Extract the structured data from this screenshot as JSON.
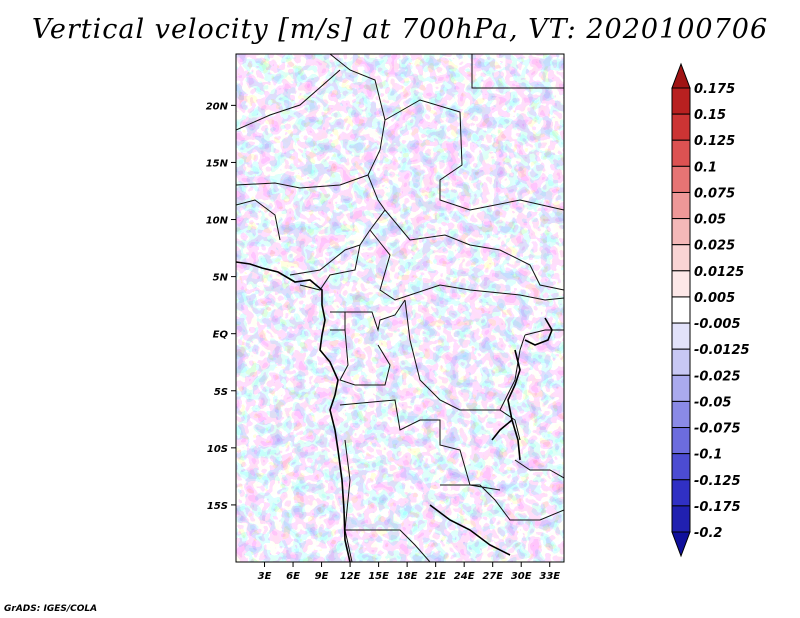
{
  "title": "Vertical velocity [m/s] at 700hPa, VT: 2020100706",
  "credit": "GrADS: IGES/COLA",
  "map": {
    "lat_labels": [
      "20N",
      "15N",
      "10N",
      "5N",
      "EQ",
      "5S",
      "10S",
      "15S"
    ],
    "lon_labels": [
      "3E",
      "6E",
      "9E",
      "12E",
      "15E",
      "18E",
      "21E",
      "24E",
      "27E",
      "30E",
      "33E"
    ],
    "lat_range": [
      -20,
      24.5
    ],
    "lon_range": [
      0,
      34.5
    ]
  },
  "colorbar": {
    "levels": [
      "0.175",
      "0.15",
      "0.125",
      "0.1",
      "0.075",
      "0.05",
      "0.025",
      "0.0125",
      "0.005",
      "-0.005",
      "-0.0125",
      "-0.025",
      "-0.05",
      "-0.075",
      "-0.1",
      "-0.125",
      "-0.175",
      "-0.2"
    ],
    "colors": [
      "#a01414",
      "#b82020",
      "#cc3434",
      "#dc5252",
      "#e67474",
      "#ee9898",
      "#f4b8b8",
      "#f9d4d4",
      "#fde8e8",
      "#ffffff",
      "#e2e2fa",
      "#c8c8f4",
      "#aaaaee",
      "#8a8ae6",
      "#6c6cde",
      "#4c4cd2",
      "#3030c4",
      "#2020b0",
      "#10109c"
    ]
  }
}
